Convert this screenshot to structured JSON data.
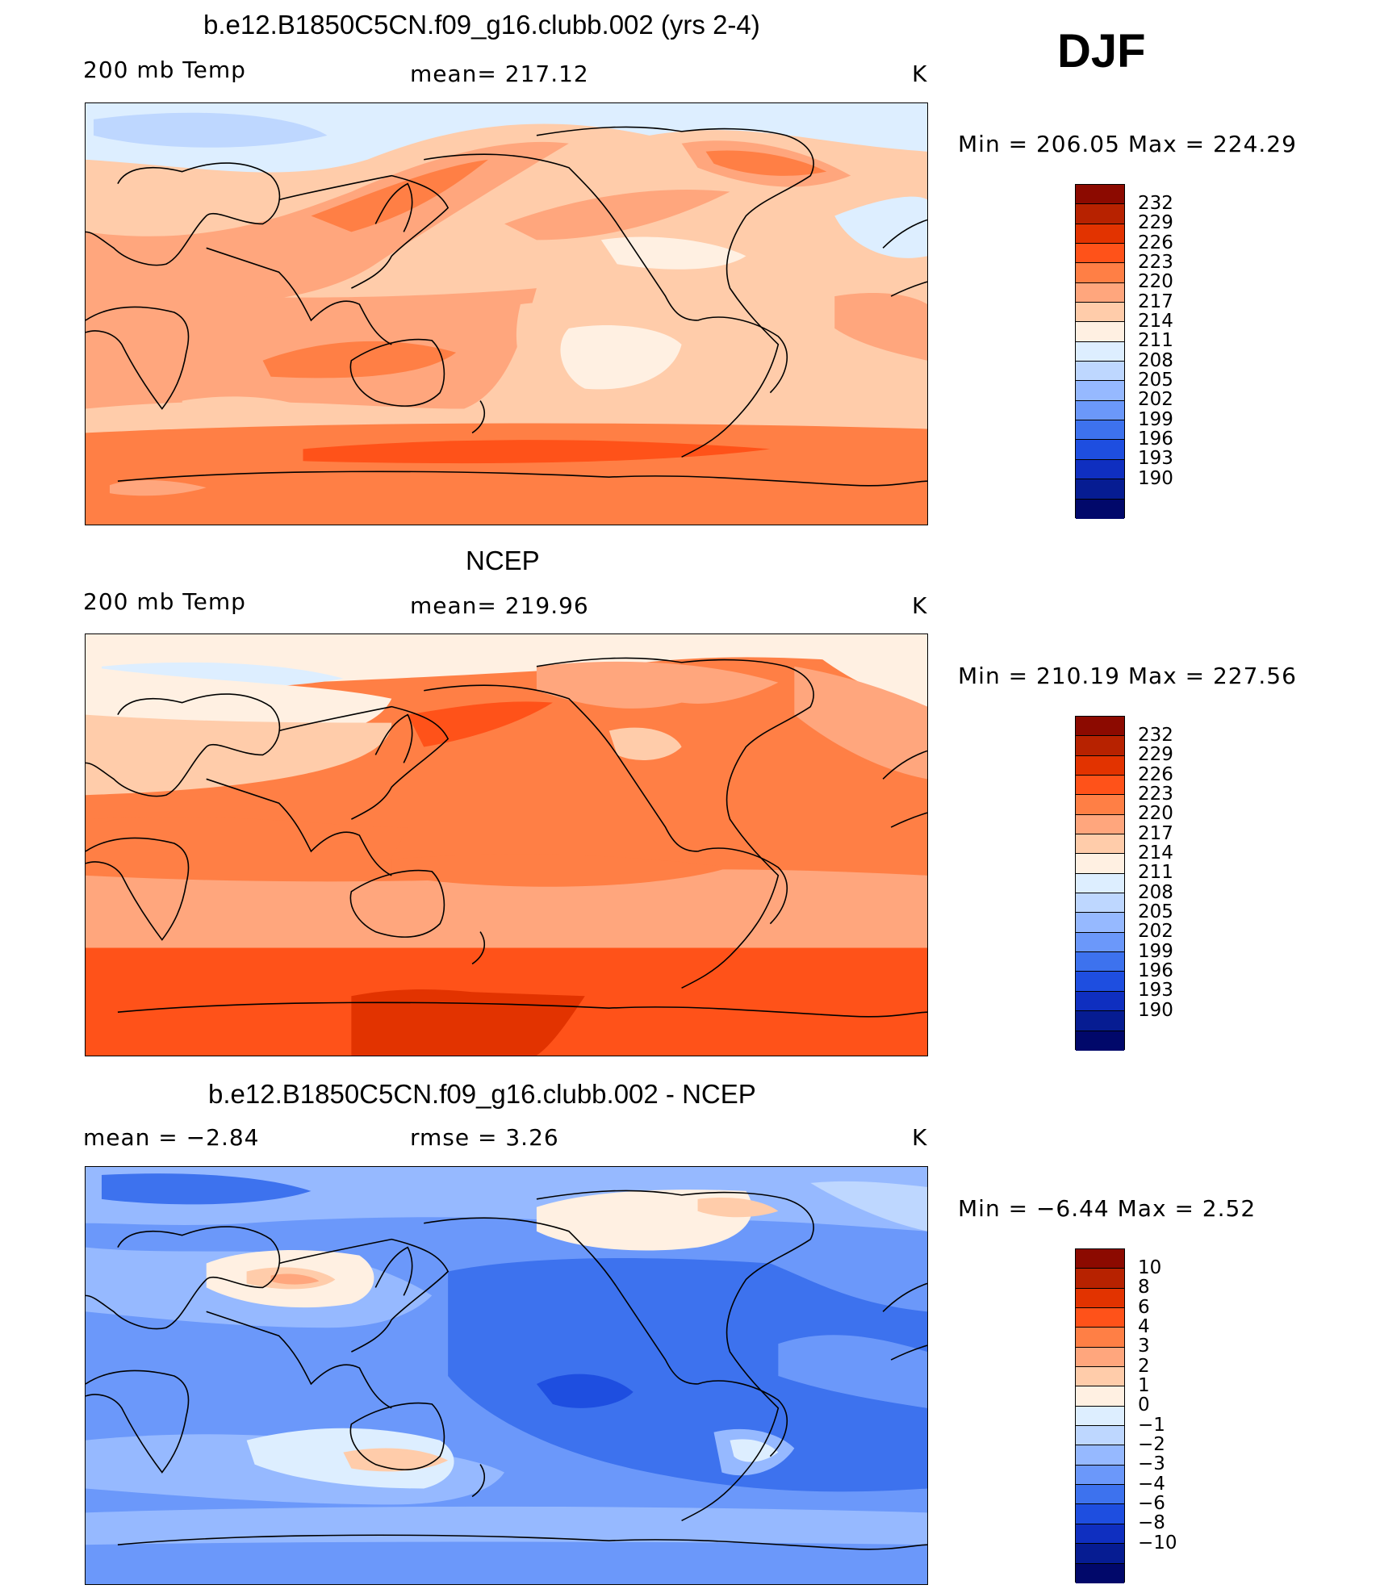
{
  "season": "DJF",
  "colors": {
    "temp_scale": [
      "#8c0a00",
      "#b72200",
      "#e23300",
      "#ff5219",
      "#ff7f45",
      "#ffa67d",
      "#ffccaa",
      "#fff0e2",
      "#ddeeff",
      "#bed7ff",
      "#96b9ff",
      "#6b98fa",
      "#3d72ee",
      "#1e4ee0",
      "#0f2fc0",
      "#061c92",
      "#01086a"
    ],
    "diff_scale": [
      "#8c0a00",
      "#b72200",
      "#e23300",
      "#ff5219",
      "#ff7f45",
      "#ffa67d",
      "#ffccaa",
      "#fff0e2",
      "#ddeeff",
      "#bed7ff",
      "#96b9ff",
      "#6b98fa",
      "#3d72ee",
      "#1e4ee0",
      "#0f2fc0",
      "#061c92",
      "#01086a"
    ]
  },
  "panels": [
    {
      "title": "b.e12.B1850C5CN.f09_g16.clubb.002 (yrs 2-4)",
      "left": "200 mb Temp",
      "center": "mean=  217.12",
      "units": "K",
      "minmax": "Min  =  206.05  Max  =  224.29",
      "levels": [
        "232",
        "229",
        "226",
        "223",
        "220",
        "217",
        "214",
        "211",
        "208",
        "205",
        "202",
        "199",
        "196",
        "193",
        "190"
      ]
    },
    {
      "title": "NCEP",
      "left": "200 mb Temp",
      "center": "mean=  219.96",
      "units": "K",
      "minmax": "Min  =  210.19  Max  =  227.56",
      "levels": [
        "232",
        "229",
        "226",
        "223",
        "220",
        "217",
        "214",
        "211",
        "208",
        "205",
        "202",
        "199",
        "196",
        "193",
        "190"
      ]
    },
    {
      "title": "b.e12.B1850C5CN.f09_g16.clubb.002 - NCEP",
      "left": "mean  =    −2.84",
      "center": "rmse  =     3.26",
      "units": "K",
      "minmax": "Min  =    −6.44  Max  =      2.52",
      "levels": [
        "10",
        "8",
        "6",
        "4",
        "3",
        "2",
        "1",
        "0",
        "−1",
        "−2",
        "−3",
        "−4",
        "−6",
        "−8",
        "−10"
      ]
    }
  ]
}
